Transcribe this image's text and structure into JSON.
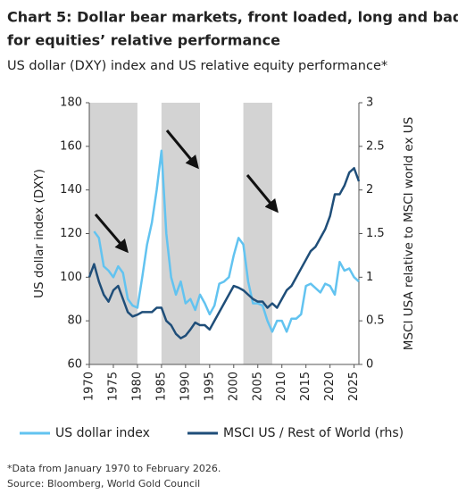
{
  "chart_data": {
    "type": "line",
    "title_lines": [
      "Chart 5: Dollar bear markets, front loaded, long and bad",
      "for equities’ relative performance"
    ],
    "subtitle": "US dollar (DXY) index and US relative equity performance*",
    "y_label": "US dollar index (DXY)",
    "y2_label": "MSCI USA relative to MSCI world ex US",
    "notes": [
      "*Data from January 1970 to February 2026.",
      "Source: Bloomberg, World Gold Council"
    ],
    "x": [
      1970,
      1971,
      1972,
      1973,
      1974,
      1975,
      1976,
      1977,
      1978,
      1979,
      1980,
      1981,
      1982,
      1983,
      1984,
      1985,
      1986,
      1987,
      1988,
      1989,
      1990,
      1991,
      1992,
      1993,
      1994,
      1995,
      1996,
      1997,
      1998,
      1999,
      2000,
      2001,
      2002,
      2003,
      2004,
      2005,
      2006,
      2007,
      2008,
      2009,
      2010,
      2011,
      2012,
      2013,
      2014,
      2015,
      2016,
      2017,
      2018,
      2019,
      2020,
      2021,
      2022,
      2023,
      2024,
      2025,
      2026
    ],
    "series": [
      {
        "name": "US dollar index",
        "color": "#62c3f0",
        "values": [
          null,
          121,
          118,
          105,
          103,
          100,
          105,
          102,
          90,
          87,
          86,
          100,
          115,
          125,
          140,
          158,
          120,
          100,
          92,
          98,
          88,
          90,
          85,
          92,
          88,
          83,
          87,
          97,
          98,
          100,
          110,
          118,
          115,
          98,
          88,
          88,
          87,
          80,
          75,
          80,
          80,
          75,
          81,
          81,
          83,
          96,
          97,
          95,
          93,
          97,
          96,
          92,
          107,
          103,
          104,
          100,
          98
        ]
      },
      {
        "name": "MSCI US / Rest of World (rhs)",
        "color": "#1f4e79",
        "axis": "y2",
        "values": [
          1.0,
          1.15,
          0.95,
          0.8,
          0.72,
          0.85,
          0.9,
          0.75,
          0.6,
          0.55,
          0.57,
          0.6,
          0.6,
          0.6,
          0.65,
          0.65,
          0.5,
          0.45,
          0.35,
          0.3,
          0.33,
          0.4,
          0.48,
          0.45,
          0.45,
          0.4,
          0.5,
          0.6,
          0.7,
          0.8,
          0.9,
          0.88,
          0.85,
          0.8,
          0.75,
          0.72,
          0.72,
          0.65,
          0.7,
          0.65,
          0.75,
          0.85,
          0.9,
          1.0,
          1.1,
          1.2,
          1.3,
          1.35,
          1.45,
          1.55,
          1.7,
          1.95,
          1.95,
          2.05,
          2.2,
          2.25,
          2.1
        ]
      }
    ],
    "shaded": [
      [
        1970,
        1980
      ],
      [
        1985,
        1993
      ],
      [
        2002,
        2008
      ]
    ],
    "shade_color": "#d3d3d3",
    "xlim": [
      1970,
      2026
    ],
    "xticks": [
      1970,
      1975,
      1980,
      1985,
      1990,
      1995,
      2000,
      2005,
      2010,
      2015,
      2020,
      2025
    ],
    "ylim": [
      60,
      180
    ],
    "yticks": [
      60,
      80,
      100,
      120,
      140,
      160,
      180
    ],
    "y2lim": [
      0,
      3
    ],
    "y2ticks": [
      0,
      0.5,
      1,
      1.5,
      2,
      2.5,
      3
    ]
  }
}
